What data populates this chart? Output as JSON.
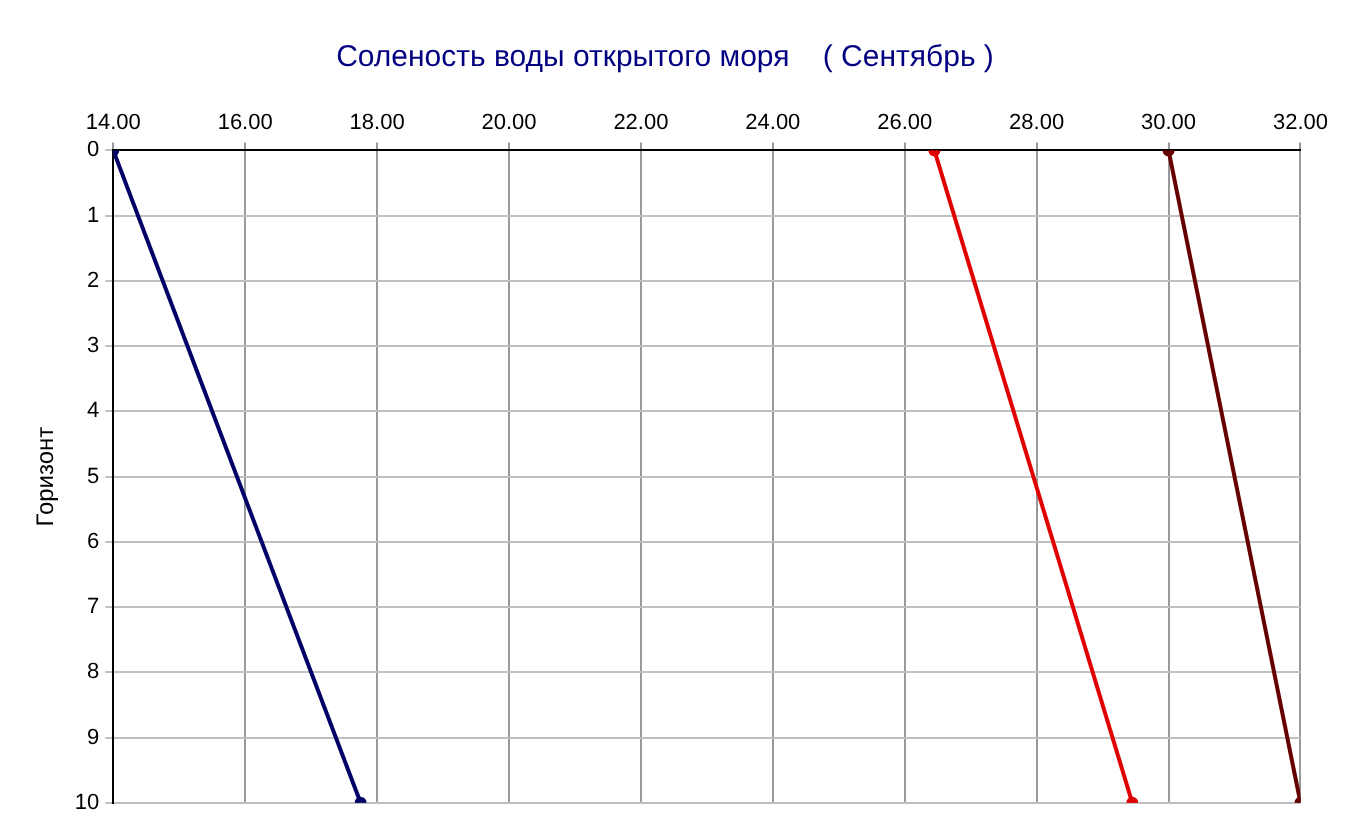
{
  "chart_data": {
    "type": "line",
    "title": "Соленость воды открытого моря    ( Сентябрь )",
    "ylabel": "Горизонт",
    "series": [
      {
        "color": "#000066",
        "x": [
          14,
          17.75
        ],
        "values": [
          0,
          10
        ]
      },
      {
        "color": "#e00000",
        "x": [
          26.45,
          29.45
        ],
        "values": [
          0,
          10
        ]
      },
      {
        "color": "#660000",
        "x": [
          30,
          32
        ],
        "values": [
          0,
          10
        ]
      }
    ],
    "xlim": [
      14,
      32
    ],
    "xticks": [
      {
        "value": 14,
        "label": "14.00"
      },
      {
        "value": 16,
        "label": "16.00"
      },
      {
        "value": 18,
        "label": "18.00"
      },
      {
        "value": 20,
        "label": "20.00"
      },
      {
        "value": 22,
        "label": "22.00"
      },
      {
        "value": 24,
        "label": "24.00"
      },
      {
        "value": 26,
        "label": "26.00"
      },
      {
        "value": 28,
        "label": "28.00"
      },
      {
        "value": 30,
        "label": "30.00"
      },
      {
        "value": 32,
        "label": "32.00"
      }
    ],
    "ylim": [
      10,
      0
    ],
    "yticks": [
      0,
      1,
      2,
      3,
      4,
      5,
      6,
      7,
      8,
      9,
      10
    ],
    "grid": true,
    "legend": false,
    "marker": "circle",
    "line_style": "solid"
  }
}
